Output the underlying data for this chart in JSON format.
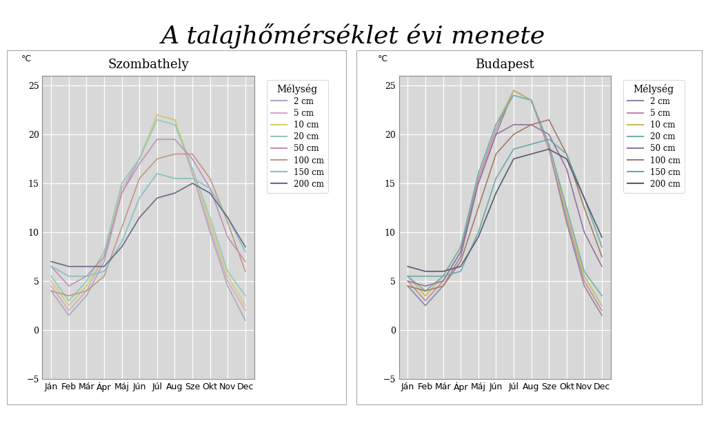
{
  "title": "A talajhőmérséklet évi menete",
  "title_fontsize": 26,
  "months": [
    "Ján",
    "Feb",
    "Már",
    "Ápr",
    "Máj",
    "Jún",
    "Júl",
    "Aug",
    "Sze",
    "Okt",
    "Nov",
    "Dec"
  ],
  "ylim": [
    -5,
    26
  ],
  "yticks": [
    -5,
    0,
    5,
    10,
    15,
    20,
    25
  ],
  "legend_title": "Mélység",
  "legend_labels": [
    "2 cm",
    "5 cm",
    "10 cm",
    "20 cm",
    "50 cm",
    "100 cm",
    "150 cm",
    "200 cm"
  ],
  "szombathely_colors": [
    "#a8a8c0",
    "#d8a8c0",
    "#d0d070",
    "#90c8c0",
    "#c090b8",
    "#c09888",
    "#88c0c0",
    "#686888"
  ],
  "budapest_colors": [
    "#8888a8",
    "#c888a0",
    "#c0c058",
    "#70b0b0",
    "#9870a0",
    "#a87868",
    "#70a8a8",
    "#585870"
  ],
  "szombathely": {
    "title": "Szombathely",
    "data": {
      "2cm": [
        4.0,
        1.5,
        3.5,
        7.0,
        14.0,
        17.5,
        22.0,
        21.5,
        16.0,
        10.0,
        4.5,
        1.0
      ],
      "5cm": [
        4.5,
        2.0,
        4.0,
        7.5,
        14.5,
        17.5,
        22.0,
        21.5,
        16.0,
        10.5,
        5.0,
        2.0
      ],
      "10cm": [
        5.0,
        2.5,
        4.5,
        7.5,
        15.0,
        17.5,
        22.0,
        21.5,
        16.5,
        11.0,
        5.5,
        2.5
      ],
      "20cm": [
        5.5,
        3.0,
        5.0,
        8.0,
        15.0,
        17.5,
        21.5,
        21.0,
        16.5,
        11.5,
        6.0,
        3.5
      ],
      "50cm": [
        6.5,
        4.5,
        5.5,
        7.5,
        14.0,
        17.0,
        19.5,
        19.5,
        17.5,
        14.5,
        9.5,
        7.0
      ],
      "100cm": [
        4.0,
        3.5,
        4.0,
        5.5,
        10.5,
        15.5,
        17.5,
        18.0,
        18.0,
        15.5,
        11.0,
        6.0
      ],
      "150cm": [
        6.5,
        5.5,
        5.5,
        6.0,
        9.0,
        13.5,
        16.0,
        15.5,
        15.5,
        14.5,
        11.5,
        8.0
      ],
      "200cm": [
        7.0,
        6.5,
        6.5,
        6.5,
        8.5,
        11.5,
        13.5,
        14.0,
        15.0,
        14.0,
        11.5,
        8.5
      ]
    }
  },
  "budapest": {
    "title": "Budapest",
    "data": {
      "2cm": [
        4.5,
        2.5,
        4.5,
        7.5,
        15.0,
        20.0,
        24.5,
        23.5,
        18.5,
        11.0,
        4.5,
        1.5
      ],
      "5cm": [
        5.0,
        3.0,
        5.0,
        8.0,
        15.5,
        20.5,
        24.5,
        23.5,
        18.5,
        11.5,
        5.0,
        2.0
      ],
      "10cm": [
        5.5,
        3.5,
        5.5,
        8.5,
        16.0,
        21.0,
        24.5,
        23.5,
        19.0,
        12.0,
        5.5,
        2.5
      ],
      "20cm": [
        5.5,
        4.0,
        5.5,
        8.5,
        16.0,
        21.0,
        24.0,
        23.5,
        19.0,
        12.5,
        6.0,
        3.5
      ],
      "50cm": [
        5.0,
        4.5,
        5.0,
        8.0,
        15.0,
        20.0,
        21.0,
        21.0,
        20.0,
        16.5,
        10.0,
        6.5
      ],
      "100cm": [
        4.5,
        4.0,
        4.5,
        7.0,
        12.5,
        18.0,
        20.0,
        21.0,
        21.5,
        18.0,
        12.5,
        7.5
      ],
      "150cm": [
        5.5,
        5.5,
        5.5,
        6.0,
        10.0,
        15.5,
        18.5,
        19.0,
        19.5,
        18.0,
        13.5,
        8.5
      ],
      "200cm": [
        6.5,
        6.0,
        6.0,
        6.5,
        9.5,
        14.0,
        17.5,
        18.0,
        18.5,
        17.5,
        13.5,
        9.5
      ]
    }
  },
  "outer_bg": "#f0f0f0",
  "plot_bg": "#d8d8d8",
  "grid_color": "#ffffff",
  "ylabel": "°C"
}
